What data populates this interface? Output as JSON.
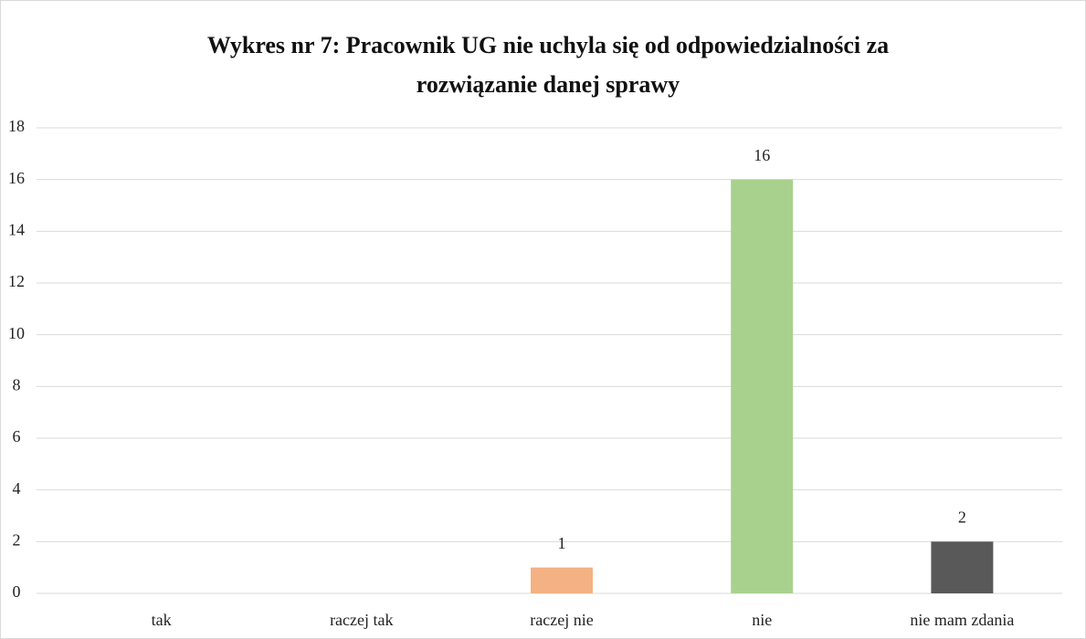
{
  "chart_data": {
    "type": "bar",
    "title": [
      "Wykres nr 7: Pracownik UG nie uchyla się od odpowiedzialności za",
      "rozwiązanie danej sprawy"
    ],
    "categories": [
      "tak",
      "raczej tak",
      "raczej nie",
      "nie",
      "nie mam zdania"
    ],
    "values": [
      null,
      null,
      1,
      16,
      2
    ],
    "colors": [
      "#5b9bd5",
      "#ed7d31",
      "#f4b183",
      "#a9d18e",
      "#595959"
    ],
    "ylim": [
      0,
      18
    ],
    "yticks": [
      0,
      2,
      4,
      6,
      8,
      10,
      12,
      14,
      16,
      18
    ],
    "grid": true
  }
}
